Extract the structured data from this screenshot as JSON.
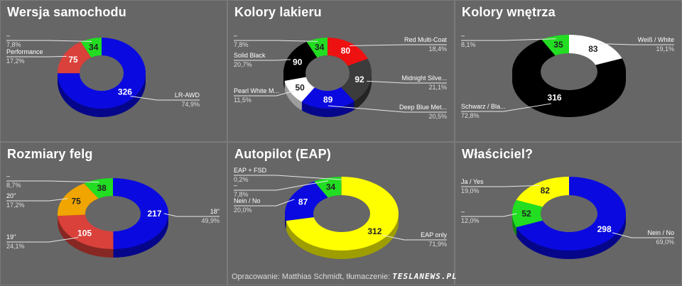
{
  "footer": {
    "credit": "Opracowanie: Matthias Schmidt, tłumaczenie:",
    "brand": "TESLANEWS.PL"
  },
  "chart_data": [
    {
      "type": "pie",
      "donut": true,
      "title": "Wersja samochodu",
      "slices": [
        {
          "label": "LR-AWD",
          "value": 326,
          "pct": "74,9%",
          "color": "#0a0ae0"
        },
        {
          "label": "Performance",
          "value": 75,
          "pct": "17,2%",
          "color": "#d9413a"
        },
        {
          "label": "–",
          "value": 34,
          "pct": "7,8%",
          "color": "#22dd22"
        }
      ]
    },
    {
      "type": "pie",
      "donut": true,
      "title": "Kolory lakieru",
      "slices": [
        {
          "label": "Red Multi-Coat",
          "value": 80,
          "pct": "18,4%",
          "color": "#ee1111"
        },
        {
          "label": "Midnight Silve...",
          "value": 92,
          "pct": "21,1%",
          "color": "#3c3c3c"
        },
        {
          "label": "Deep Blue Met...",
          "value": 89,
          "pct": "20,5%",
          "color": "#0a0ae0"
        },
        {
          "label": "Pearl White M...",
          "value": 50,
          "pct": "11,5%",
          "color": "#ffffff"
        },
        {
          "label": "Solid Black",
          "value": 90,
          "pct": "20,7%",
          "color": "#000000"
        },
        {
          "label": "–",
          "value": 34,
          "pct": "7,8%",
          "color": "#22dd22"
        }
      ]
    },
    {
      "type": "pie",
      "donut": true,
      "title": "Kolory wnętrza",
      "slices": [
        {
          "label": "Weiß / White",
          "value": 83,
          "pct": "19,1%",
          "color": "#ffffff"
        },
        {
          "label": "Schwarz / Bla...",
          "value": 316,
          "pct": "72,8%",
          "color": "#000000"
        },
        {
          "label": "–",
          "value": 35,
          "pct": "8,1%",
          "color": "#22dd22"
        }
      ]
    },
    {
      "type": "pie",
      "donut": true,
      "title": "Rozmiary felg",
      "slices": [
        {
          "label": "18\"",
          "value": 217,
          "pct": "49,9%",
          "color": "#0a0ae0"
        },
        {
          "label": "19\"",
          "value": 105,
          "pct": "24,1%",
          "color": "#d9413a"
        },
        {
          "label": "20\"",
          "value": 75,
          "pct": "17,2%",
          "color": "#f0a500"
        },
        {
          "label": "–",
          "value": 38,
          "pct": "8,7%",
          "color": "#22dd22"
        }
      ]
    },
    {
      "type": "pie",
      "donut": true,
      "title": "Autopilot (EAP)",
      "slices": [
        {
          "label": "EAP only",
          "value": 312,
          "pct": "71,9%",
          "color": "#ffff00"
        },
        {
          "label": "Nein / No",
          "value": 87,
          "pct": "20,0%",
          "color": "#0a0ae0"
        },
        {
          "label": "–",
          "value": 34,
          "pct": "7,8%",
          "color": "#22dd22"
        },
        {
          "label": "EAP + FSD",
          "value": 1,
          "pct": "0,2%",
          "color": "#9acd32"
        }
      ]
    },
    {
      "type": "pie",
      "donut": true,
      "title": "Właściciel?",
      "slices": [
        {
          "label": "Nein / No",
          "value": 298,
          "pct": "69,0%",
          "color": "#0a0ae0"
        },
        {
          "label": "–",
          "value": 52,
          "pct": "12,0%",
          "color": "#22dd22"
        },
        {
          "label": "Ja / Yes",
          "value": 82,
          "pct": "19,0%",
          "color": "#ffff00"
        }
      ]
    }
  ]
}
